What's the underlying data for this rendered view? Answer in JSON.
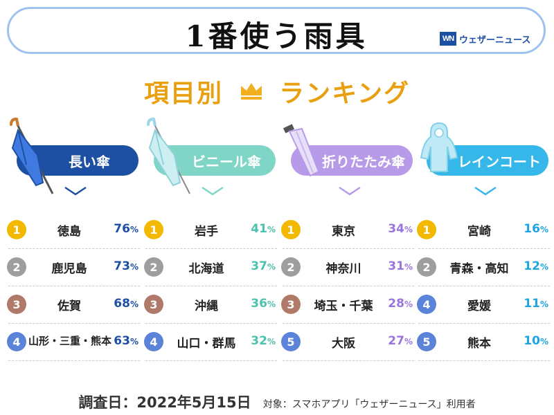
{
  "title": "1番使う雨具",
  "logo": {
    "mark": "WN",
    "text": "ウェザーニュース"
  },
  "heading": {
    "left": "項目別",
    "right": "ランキング",
    "crown_icon": "crown-icon",
    "color": "#e8a010"
  },
  "badge_colors": {
    "1": "#f3b800",
    "2": "#9e9e9e",
    "3": "#b07a6a",
    "4": "#5b84d9",
    "5": "#5b84d9"
  },
  "columns": [
    {
      "label": "長い傘",
      "color": "#1d4fa3",
      "accent": "#1d4fa3",
      "icon": "long-umbrella-icon",
      "rows": [
        {
          "rank": "1",
          "pref": "徳島",
          "value": "76",
          "unit": "%"
        },
        {
          "rank": "2",
          "pref": "鹿児島",
          "value": "73",
          "unit": "%"
        },
        {
          "rank": "3",
          "pref": "佐賀",
          "value": "68",
          "unit": "%"
        },
        {
          "rank": "4",
          "pref": "山形・三重・熊本",
          "value": "63",
          "unit": "%"
        }
      ]
    },
    {
      "label": "ビニール傘",
      "color": "#7fd6c6",
      "accent": "#4cc1ad",
      "icon": "vinyl-umbrella-icon",
      "rows": [
        {
          "rank": "1",
          "pref": "岩手",
          "value": "41",
          "unit": "%"
        },
        {
          "rank": "2",
          "pref": "北海道",
          "value": "37",
          "unit": "%"
        },
        {
          "rank": "3",
          "pref": "沖縄",
          "value": "36",
          "unit": "%"
        },
        {
          "rank": "4",
          "pref": "山口・群馬",
          "value": "32",
          "unit": "%"
        }
      ]
    },
    {
      "label": "折りたたみ傘",
      "color": "#b79be8",
      "accent": "#9a74dd",
      "icon": "folding-umbrella-icon",
      "rows": [
        {
          "rank": "1",
          "pref": "東京",
          "value": "34",
          "unit": "%"
        },
        {
          "rank": "2",
          "pref": "神奈川",
          "value": "31",
          "unit": "%"
        },
        {
          "rank": "3",
          "pref": "埼玉・千葉",
          "value": "28",
          "unit": "%"
        },
        {
          "rank": "5",
          "pref": "大阪",
          "value": "27",
          "unit": "%"
        }
      ]
    },
    {
      "label": "レインコート",
      "color": "#36b7ea",
      "accent": "#1ea5e0",
      "icon": "raincoat-icon",
      "rows": [
        {
          "rank": "1",
          "pref": "宮崎",
          "value": "16",
          "unit": "%"
        },
        {
          "rank": "2",
          "pref": "青森・高知",
          "value": "12",
          "unit": "%"
        },
        {
          "rank": "4",
          "pref": "愛媛",
          "value": "11",
          "unit": "%"
        },
        {
          "rank": "5",
          "pref": "熊本",
          "value": "10",
          "unit": "%"
        }
      ]
    }
  ],
  "footer": {
    "date": "調査日：2022年5月15日",
    "target": "対象：スマホアプリ「ウェザーニュース」利用者"
  }
}
